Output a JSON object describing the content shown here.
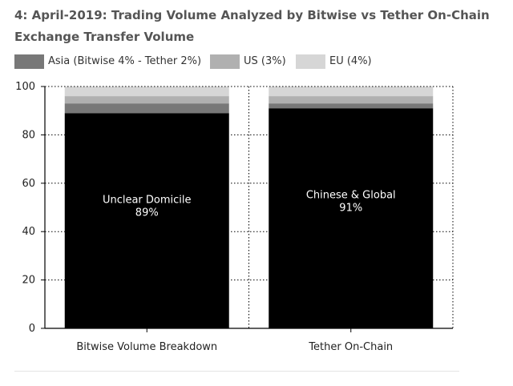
{
  "title": "4: April-2019: Trading Volume Analyzed by Bitwise vs Tether On-Chain Exchange Transfer Volume",
  "colors": {
    "main": "#000000",
    "asia": "#787878",
    "us": "#b0b0b0",
    "eu": "#d6d6d6"
  },
  "chart_data": {
    "type": "bar",
    "stacked": true,
    "categories": [
      "Bitwise Volume Breakdown",
      "Tether On-Chain"
    ],
    "series": [
      {
        "key": "main",
        "values": [
          89,
          91
        ]
      },
      {
        "key": "asia",
        "name": "Asia (Bitwise 4% - Tether 2%)",
        "values": [
          4,
          2
        ]
      },
      {
        "key": "us",
        "name": "US (3%)",
        "values": [
          3,
          3
        ]
      },
      {
        "key": "eu",
        "name": "EU (4%)",
        "values": [
          4,
          4
        ]
      }
    ],
    "bar_labels": [
      {
        "text": "Unclear Domicile",
        "value": "89%"
      },
      {
        "text": "Chinese & Global",
        "value": "91%"
      }
    ],
    "ylim": [
      0,
      100
    ],
    "yticks": [
      "0",
      "20",
      "40",
      "60",
      "80",
      "100"
    ],
    "legend_position": "top-left",
    "grid": true
  }
}
